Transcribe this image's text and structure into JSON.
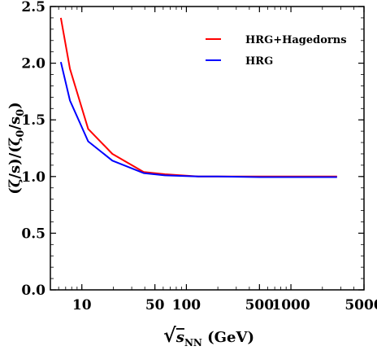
{
  "chart_data": {
    "type": "line",
    "xscale": "log",
    "xlim": [
      5,
      5000
    ],
    "ylim": [
      0,
      2.5
    ],
    "xticks": [
      10,
      50,
      100,
      500,
      1000,
      5000
    ],
    "xtick_labels": [
      "10",
      "50",
      "100",
      "500",
      "1000",
      "5000"
    ],
    "yticks": [
      0.0,
      0.5,
      1.0,
      1.5,
      2.0,
      2.5
    ],
    "ytick_labels": [
      "0.0",
      "0.5",
      "1.0",
      "1.5",
      "2.0",
      "2.5"
    ],
    "xlabel": "√sNN (GeV)",
    "xlabel_parts": {
      "root": "√",
      "s": "s",
      "sub": "NN",
      "unit": " (GeV)"
    },
    "ylabel": "(ζ/s)/(ζ0/s0)",
    "ylabel_parts": {
      "p1": "(ζ/s)/(ζ",
      "sub1": "0",
      "p2": "/s",
      "sub2": "0",
      "p3": ")"
    },
    "legend_position": "top-right",
    "grid": false,
    "series": [
      {
        "name": "HRG+Hagedorns",
        "color": "#ff0000",
        "x": [
          6.3,
          7.7,
          11.5,
          19.6,
          39,
          62.4,
          130,
          200,
          500,
          1000,
          2760
        ],
        "y": [
          2.4,
          1.95,
          1.42,
          1.2,
          1.04,
          1.02,
          1.0,
          1.0,
          1.0,
          1.0,
          1.0
        ]
      },
      {
        "name": "HRG",
        "color": "#0000ff",
        "x": [
          6.3,
          7.7,
          11.5,
          19.6,
          39,
          62.4,
          130,
          200,
          500,
          1000,
          2760
        ],
        "y": [
          2.01,
          1.67,
          1.31,
          1.14,
          1.03,
          1.01,
          1.0,
          1.0,
          0.995,
          0.995,
          0.995
        ]
      }
    ]
  }
}
